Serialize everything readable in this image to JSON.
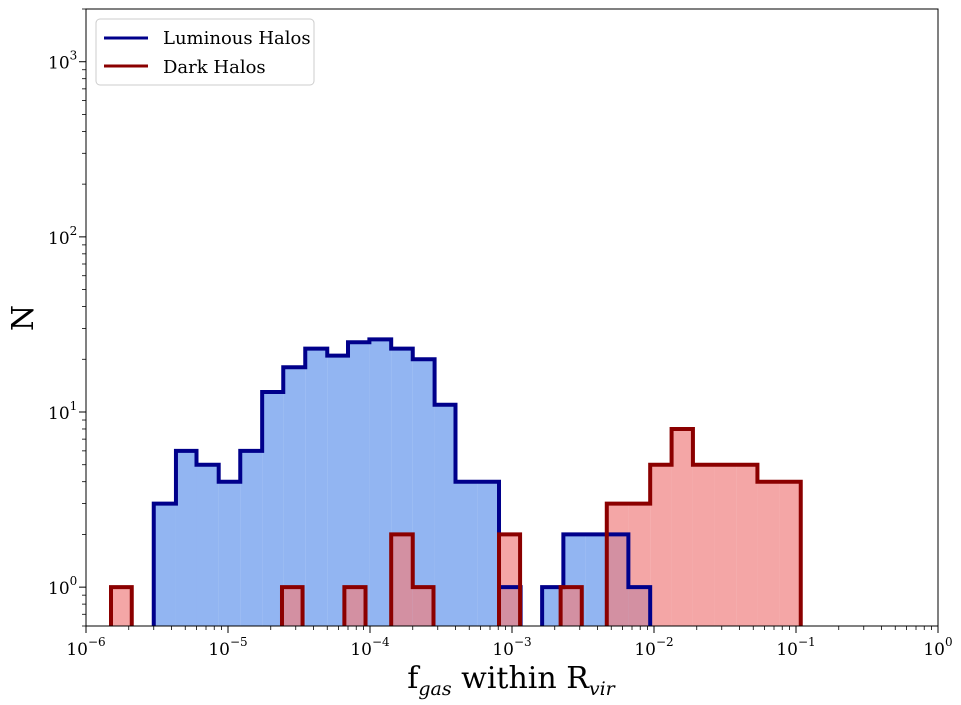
{
  "chart_data": {
    "type": "histogram",
    "xlabel": {
      "base": "f",
      "sub1": "gas",
      "mid": " within R",
      "sub2": "vir"
    },
    "ylabel": "N",
    "xscale": "log",
    "yscale": "log",
    "xlim": [
      1e-06,
      1
    ],
    "ylim": [
      0.6,
      2000
    ],
    "x_ticks": [
      {
        "value": 1e-06,
        "base": "10",
        "exp": "−6"
      },
      {
        "value": 1e-05,
        "base": "10",
        "exp": "−5"
      },
      {
        "value": 0.0001,
        "base": "10",
        "exp": "−4"
      },
      {
        "value": 0.001,
        "base": "10",
        "exp": "−3"
      },
      {
        "value": 0.01,
        "base": "10",
        "exp": "−2"
      },
      {
        "value": 0.1,
        "base": "10",
        "exp": "−1"
      },
      {
        "value": 1,
        "base": "10",
        "exp": "0"
      }
    ],
    "y_ticks": [
      {
        "value": 1,
        "base": "10",
        "exp": "0"
      },
      {
        "value": 10,
        "base": "10",
        "exp": "1"
      },
      {
        "value": 100,
        "base": "10",
        "exp": "2"
      },
      {
        "value": 1000,
        "base": "10",
        "exp": "3"
      }
    ],
    "legend_position": "top-left",
    "series": [
      {
        "name": "Luminous Halos",
        "line_color": "#00008b",
        "fill_color": "#6495ed",
        "fill_alpha": 0.7,
        "bins": [
          {
            "x0": 3e-06,
            "x1": 4.3e-06,
            "count": 3
          },
          {
            "x0": 4.3e-06,
            "x1": 6e-06,
            "count": 6
          },
          {
            "x0": 6e-06,
            "x1": 8.6e-06,
            "count": 5
          },
          {
            "x0": 8.6e-06,
            "x1": 1.22e-05,
            "count": 4
          },
          {
            "x0": 1.22e-05,
            "x1": 1.74e-05,
            "count": 6
          },
          {
            "x0": 1.74e-05,
            "x1": 2.45e-05,
            "count": 13
          },
          {
            "x0": 2.45e-05,
            "x1": 3.5e-05,
            "count": 18
          },
          {
            "x0": 3.5e-05,
            "x1": 5e-05,
            "count": 23
          },
          {
            "x0": 5e-05,
            "x1": 7e-05,
            "count": 21
          },
          {
            "x0": 7e-05,
            "x1": 9.9e-05,
            "count": 25
          },
          {
            "x0": 9.9e-05,
            "x1": 0.000141,
            "count": 26
          },
          {
            "x0": 0.000141,
            "x1": 0.0002,
            "count": 23
          },
          {
            "x0": 0.0002,
            "x1": 0.000285,
            "count": 20
          },
          {
            "x0": 0.000285,
            "x1": 0.0004,
            "count": 11
          },
          {
            "x0": 0.0004,
            "x1": 0.00057,
            "count": 4
          },
          {
            "x0": 0.00057,
            "x1": 0.00081,
            "count": 4
          },
          {
            "x0": 0.00081,
            "x1": 0.00115,
            "count": 1
          },
          {
            "x0": 0.00115,
            "x1": 0.00163,
            "count": 0
          },
          {
            "x0": 0.00163,
            "x1": 0.0023,
            "count": 1
          },
          {
            "x0": 0.0023,
            "x1": 0.0033,
            "count": 2
          },
          {
            "x0": 0.0033,
            "x1": 0.00465,
            "count": 2
          },
          {
            "x0": 0.00465,
            "x1": 0.0066,
            "count": 2
          },
          {
            "x0": 0.0066,
            "x1": 0.0094,
            "count": 1
          }
        ]
      },
      {
        "name": "Dark Halos",
        "line_color": "#8b0000",
        "fill_color": "#f08080",
        "fill_alpha": 0.7,
        "bins": [
          {
            "x0": 1.5e-06,
            "x1": 2.1e-06,
            "count": 1
          },
          {
            "x0": 2.4e-05,
            "x1": 3.35e-05,
            "count": 1
          },
          {
            "x0": 6.6e-05,
            "x1": 9.3e-05,
            "count": 1
          },
          {
            "x0": 0.000141,
            "x1": 0.0002,
            "count": 2
          },
          {
            "x0": 0.0002,
            "x1": 0.00028,
            "count": 1
          },
          {
            "x0": 0.00081,
            "x1": 0.00114,
            "count": 2
          },
          {
            "x0": 0.0022,
            "x1": 0.0031,
            "count": 1
          },
          {
            "x0": 0.00465,
            "x1": 0.0066,
            "count": 3
          },
          {
            "x0": 0.0066,
            "x1": 0.0094,
            "count": 3
          },
          {
            "x0": 0.0094,
            "x1": 0.0133,
            "count": 5
          },
          {
            "x0": 0.0133,
            "x1": 0.0188,
            "count": 8
          },
          {
            "x0": 0.0188,
            "x1": 0.0267,
            "count": 5
          },
          {
            "x0": 0.0267,
            "x1": 0.038,
            "count": 5
          },
          {
            "x0": 0.038,
            "x1": 0.0535,
            "count": 5
          },
          {
            "x0": 0.0535,
            "x1": 0.076,
            "count": 4
          },
          {
            "x0": 0.076,
            "x1": 0.108,
            "count": 4
          }
        ]
      }
    ]
  }
}
